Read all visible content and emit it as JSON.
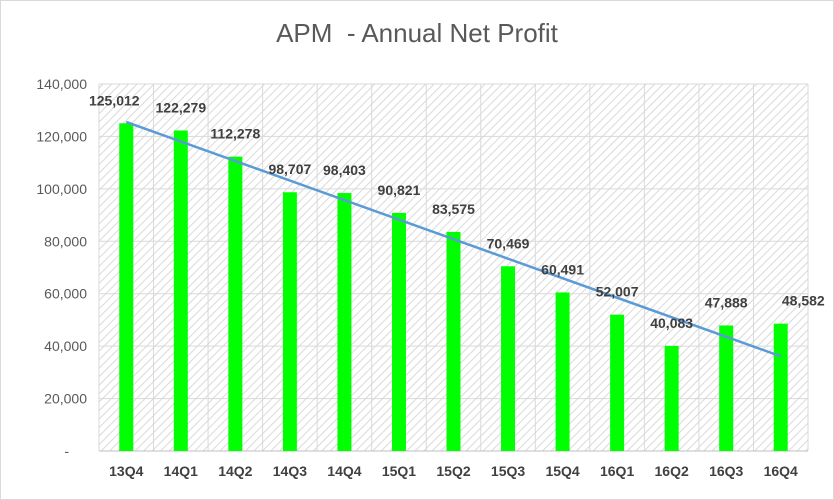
{
  "chart_data": {
    "type": "bar",
    "title": "APM  - Annual Net Profit",
    "categories": [
      "13Q4",
      "14Q1",
      "14Q2",
      "14Q3",
      "14Q4",
      "15Q1",
      "15Q2",
      "15Q3",
      "15Q4",
      "16Q1",
      "16Q2",
      "16Q3",
      "16Q4"
    ],
    "series": [
      {
        "name": "Net Profit",
        "values": [
          125012,
          122279,
          112278,
          98707,
          98403,
          90821,
          83575,
          70469,
          60491,
          52007,
          40083,
          47888,
          48582
        ]
      }
    ],
    "data_labels": [
      "125,012",
      "122,279",
      "112,278",
      "98,707",
      "98,403",
      "90,821",
      "83,575",
      "70,469",
      "60,491",
      "52,007",
      "40,083",
      "47,888",
      "48,582"
    ],
    "y_ticks": [
      "-",
      "20,000",
      "40,000",
      "60,000",
      "80,000",
      "100,000",
      "120,000",
      "140,000"
    ],
    "ylim": [
      0,
      140000
    ],
    "trendline": {
      "type": "linear",
      "color": "#5b9bd5"
    },
    "bar_color": "#00ff00",
    "grid": true,
    "legend": "none"
  }
}
